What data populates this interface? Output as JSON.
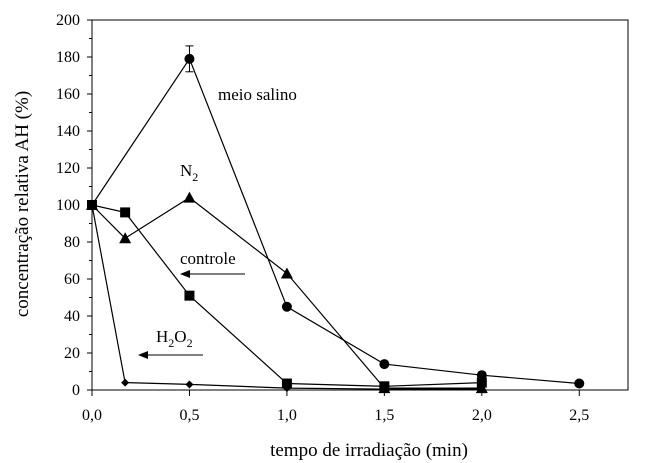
{
  "chart_data": {
    "type": "line",
    "title": "",
    "xlabel": "tempo de irradiação (min)",
    "ylabel": "concentração relativa AH (%)",
    "xlim": [
      0,
      2.75
    ],
    "ylim": [
      0,
      200
    ],
    "x_ticks": [
      0,
      0.5,
      1.0,
      1.5,
      2.0,
      2.5
    ],
    "x_tick_labels": [
      "0,0",
      "0,5",
      "1,0",
      "1,5",
      "2,0",
      "2,5"
    ],
    "y_ticks": [
      0,
      20,
      40,
      60,
      80,
      100,
      120,
      140,
      160,
      180,
      200
    ],
    "y_tick_labels": [
      "0",
      "20",
      "40",
      "60",
      "80",
      "100",
      "120",
      "140",
      "160",
      "180",
      "200"
    ],
    "grid": false,
    "legend": "none",
    "series": [
      {
        "marker": "circle",
        "x": [
          0,
          0.5,
          1.0,
          1.5,
          2.0,
          2.5
        ],
        "y": [
          100,
          179,
          45,
          14,
          8,
          3.5
        ],
        "error_bars": [
          0,
          7,
          0,
          0,
          0,
          0
        ]
      },
      {
        "marker": "triangle",
        "x": [
          0,
          0.17,
          0.5,
          1.0,
          1.5,
          2.0
        ],
        "y": [
          100,
          82,
          104,
          63,
          1,
          1
        ]
      },
      {
        "marker": "square",
        "x": [
          0,
          0.17,
          0.5,
          1.0,
          1.5,
          2.0
        ],
        "y": [
          100,
          96,
          51,
          3.5,
          2,
          4
        ]
      },
      {
        "marker": "diamond",
        "x": [
          0,
          0.17,
          0.5,
          1.0,
          1.5,
          2.0
        ],
        "y": [
          100,
          4,
          3,
          1,
          0.5,
          0.5
        ]
      }
    ],
    "annotations": {
      "meio_salino": "meio salino",
      "n2_base": "N",
      "n2_sub": "2",
      "controle": "controle",
      "h2o2_h": "H",
      "h2o2_sub1": "2",
      "h2o2_o": "O",
      "h2o2_sub2": "2"
    }
  }
}
